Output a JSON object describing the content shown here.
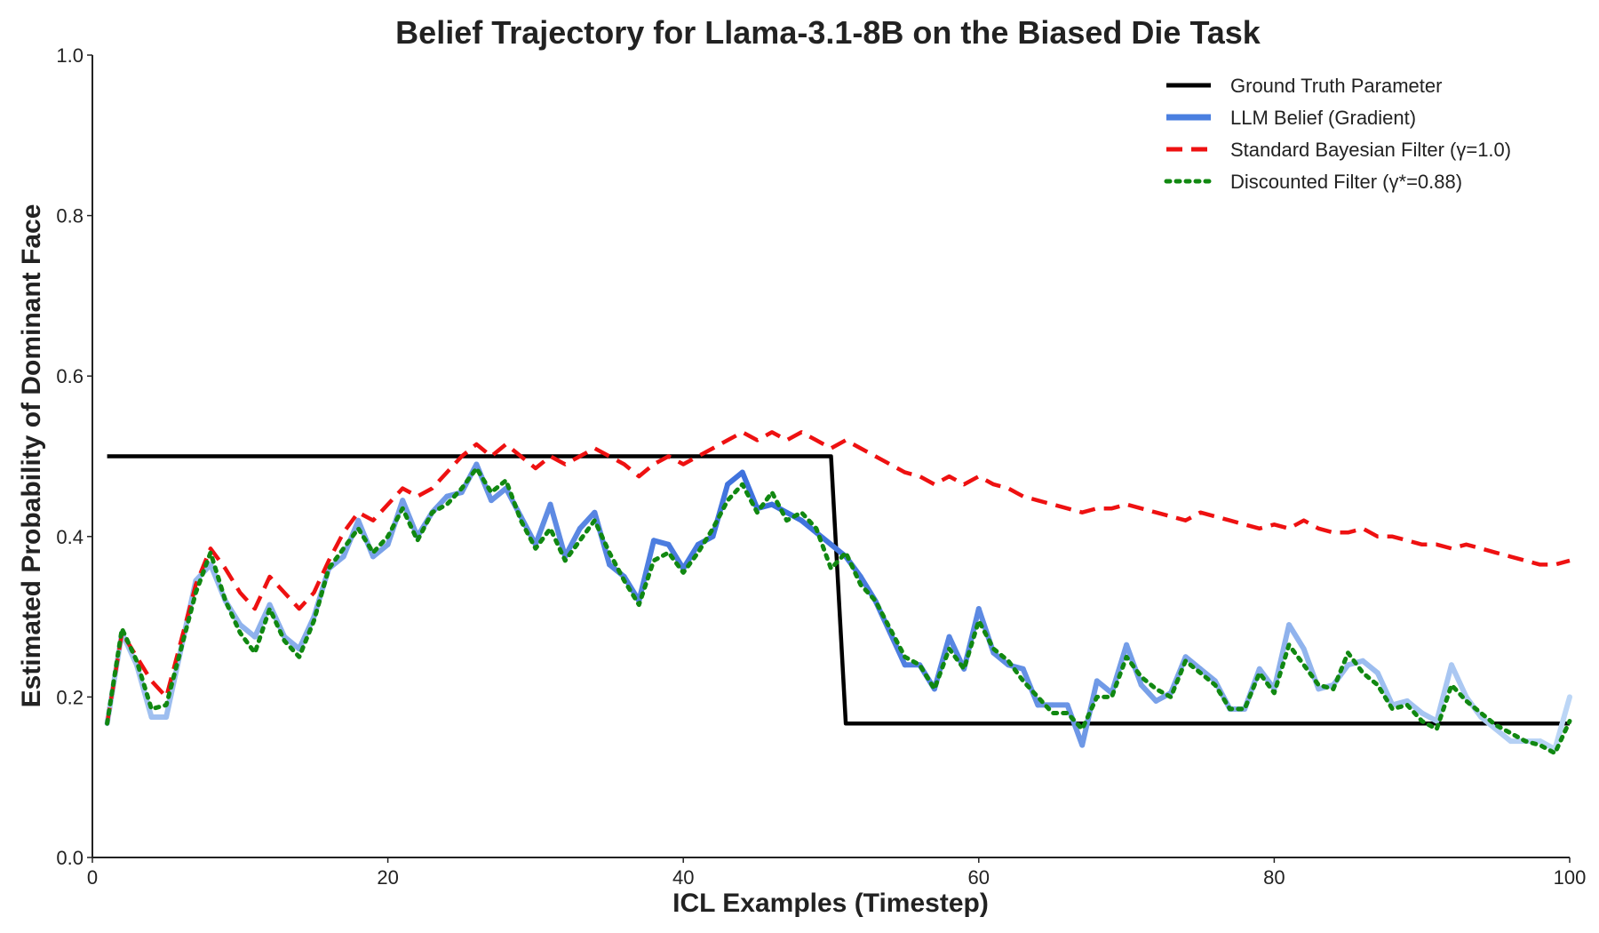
{
  "chart_data": {
    "type": "line",
    "title": "Belief Trajectory for Llama-3.1-8B on the Biased Die Task",
    "xlabel": "ICL Examples (Timestep)",
    "ylabel": "Estimated Probability of Dominant Face",
    "xlim": [
      0,
      100
    ],
    "ylim": [
      0.0,
      1.0
    ],
    "x_ticks": [
      "0",
      "20",
      "40",
      "60",
      "80",
      "100"
    ],
    "y_ticks": [
      "0.0",
      "0.2",
      "0.4",
      "0.6",
      "0.8",
      "1.0"
    ],
    "grid": false,
    "legend_position": "top-right",
    "x": [
      1,
      2,
      3,
      4,
      5,
      6,
      7,
      8,
      9,
      10,
      11,
      12,
      13,
      14,
      15,
      16,
      17,
      18,
      19,
      20,
      21,
      22,
      23,
      24,
      25,
      26,
      27,
      28,
      29,
      30,
      31,
      32,
      33,
      34,
      35,
      36,
      37,
      38,
      39,
      40,
      41,
      42,
      43,
      44,
      45,
      46,
      47,
      48,
      49,
      50,
      51,
      52,
      53,
      54,
      55,
      56,
      57,
      58,
      59,
      60,
      61,
      62,
      63,
      64,
      65,
      66,
      67,
      68,
      69,
      70,
      71,
      72,
      73,
      74,
      75,
      76,
      77,
      78,
      79,
      80,
      81,
      82,
      83,
      84,
      85,
      86,
      87,
      88,
      89,
      90,
      91,
      92,
      93,
      94,
      95,
      96,
      97,
      98,
      99,
      100
    ],
    "series": [
      {
        "name": "Ground Truth Parameter",
        "color": "#000000",
        "style": "solid",
        "values": [
          0.5,
          0.5,
          0.5,
          0.5,
          0.5,
          0.5,
          0.5,
          0.5,
          0.5,
          0.5,
          0.5,
          0.5,
          0.5,
          0.5,
          0.5,
          0.5,
          0.5,
          0.5,
          0.5,
          0.5,
          0.5,
          0.5,
          0.5,
          0.5,
          0.5,
          0.5,
          0.5,
          0.5,
          0.5,
          0.5,
          0.5,
          0.5,
          0.5,
          0.5,
          0.5,
          0.5,
          0.5,
          0.5,
          0.5,
          0.5,
          0.5,
          0.5,
          0.5,
          0.5,
          0.5,
          0.5,
          0.5,
          0.5,
          0.5,
          0.5,
          0.167,
          0.167,
          0.167,
          0.167,
          0.167,
          0.167,
          0.167,
          0.167,
          0.167,
          0.167,
          0.167,
          0.167,
          0.167,
          0.167,
          0.167,
          0.167,
          0.167,
          0.167,
          0.167,
          0.167,
          0.167,
          0.167,
          0.167,
          0.167,
          0.167,
          0.167,
          0.167,
          0.167,
          0.167,
          0.167,
          0.167,
          0.167,
          0.167,
          0.167,
          0.167,
          0.167,
          0.167,
          0.167,
          0.167,
          0.167,
          0.167,
          0.167,
          0.167,
          0.167,
          0.167,
          0.167,
          0.167,
          0.167,
          0.167,
          0.167
        ]
      },
      {
        "name": "LLM Belief (Gradient)",
        "color": "#4a7fe0",
        "style": "gradient",
        "values": [
          0.167,
          0.28,
          0.24,
          0.175,
          0.175,
          0.26,
          0.345,
          0.365,
          0.32,
          0.29,
          0.275,
          0.315,
          0.275,
          0.26,
          0.3,
          0.36,
          0.375,
          0.42,
          0.375,
          0.39,
          0.445,
          0.4,
          0.43,
          0.45,
          0.455,
          0.49,
          0.445,
          0.46,
          0.425,
          0.39,
          0.44,
          0.375,
          0.41,
          0.43,
          0.365,
          0.35,
          0.32,
          0.395,
          0.39,
          0.36,
          0.39,
          0.4,
          0.465,
          0.48,
          0.435,
          0.44,
          0.43,
          0.42,
          0.405,
          0.39,
          0.375,
          0.35,
          0.32,
          0.28,
          0.24,
          0.24,
          0.21,
          0.275,
          0.235,
          0.31,
          0.255,
          0.24,
          0.235,
          0.19,
          0.19,
          0.19,
          0.14,
          0.22,
          0.205,
          0.265,
          0.215,
          0.195,
          0.205,
          0.25,
          0.235,
          0.22,
          0.185,
          0.185,
          0.235,
          0.21,
          0.29,
          0.26,
          0.21,
          0.215,
          0.24,
          0.245,
          0.23,
          0.19,
          0.195,
          0.18,
          0.17,
          0.24,
          0.2,
          0.175,
          0.16,
          0.145,
          0.145,
          0.145,
          0.135,
          0.2
        ]
      },
      {
        "name": "Standard Bayesian Filter (γ=1.0)",
        "color": "#ee1111",
        "style": "dashed",
        "values": [
          0.167,
          0.28,
          0.25,
          0.22,
          0.2,
          0.27,
          0.34,
          0.385,
          0.36,
          0.33,
          0.31,
          0.35,
          0.33,
          0.31,
          0.33,
          0.37,
          0.405,
          0.43,
          0.42,
          0.44,
          0.46,
          0.45,
          0.46,
          0.48,
          0.5,
          0.515,
          0.5,
          0.515,
          0.5,
          0.485,
          0.5,
          0.49,
          0.5,
          0.51,
          0.5,
          0.49,
          0.475,
          0.49,
          0.5,
          0.49,
          0.5,
          0.51,
          0.52,
          0.53,
          0.52,
          0.53,
          0.52,
          0.53,
          0.52,
          0.51,
          0.52,
          0.51,
          0.5,
          0.49,
          0.48,
          0.475,
          0.465,
          0.475,
          0.465,
          0.475,
          0.465,
          0.46,
          0.45,
          0.445,
          0.44,
          0.435,
          0.43,
          0.435,
          0.435,
          0.44,
          0.435,
          0.43,
          0.425,
          0.42,
          0.43,
          0.425,
          0.42,
          0.415,
          0.41,
          0.415,
          0.41,
          0.42,
          0.41,
          0.405,
          0.405,
          0.41,
          0.4,
          0.4,
          0.395,
          0.39,
          0.39,
          0.385,
          0.39,
          0.385,
          0.38,
          0.375,
          0.37,
          0.365,
          0.365,
          0.37
        ]
      },
      {
        "name": "Discounted Filter (γ*=0.88)",
        "color": "#118811",
        "style": "dotted",
        "values": [
          0.167,
          0.285,
          0.245,
          0.185,
          0.19,
          0.26,
          0.33,
          0.38,
          0.32,
          0.28,
          0.255,
          0.31,
          0.27,
          0.25,
          0.295,
          0.36,
          0.385,
          0.41,
          0.38,
          0.4,
          0.435,
          0.395,
          0.43,
          0.44,
          0.46,
          0.485,
          0.455,
          0.47,
          0.42,
          0.385,
          0.41,
          0.37,
          0.395,
          0.42,
          0.38,
          0.345,
          0.315,
          0.37,
          0.38,
          0.355,
          0.38,
          0.41,
          0.445,
          0.465,
          0.43,
          0.455,
          0.42,
          0.43,
          0.41,
          0.36,
          0.38,
          0.34,
          0.32,
          0.285,
          0.25,
          0.24,
          0.21,
          0.26,
          0.235,
          0.295,
          0.26,
          0.245,
          0.22,
          0.2,
          0.18,
          0.18,
          0.16,
          0.2,
          0.2,
          0.25,
          0.225,
          0.21,
          0.2,
          0.245,
          0.23,
          0.215,
          0.185,
          0.185,
          0.23,
          0.205,
          0.265,
          0.24,
          0.215,
          0.21,
          0.255,
          0.23,
          0.215,
          0.185,
          0.19,
          0.17,
          0.16,
          0.215,
          0.195,
          0.18,
          0.165,
          0.155,
          0.145,
          0.14,
          0.13,
          0.17
        ]
      }
    ]
  }
}
